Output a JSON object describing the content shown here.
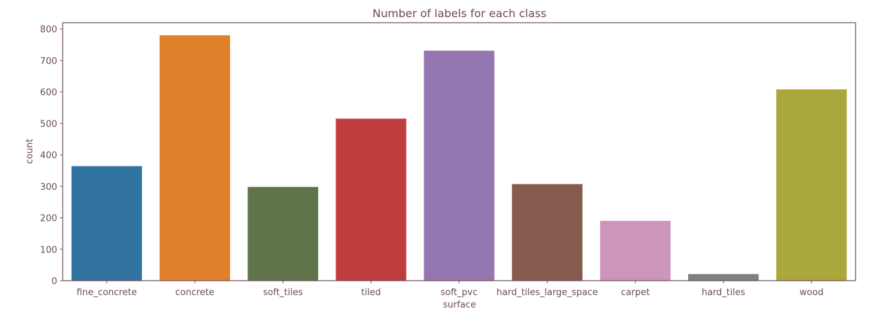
{
  "chart_data": {
    "type": "bar",
    "title": "Number of labels for each class",
    "xlabel": "surface",
    "ylabel": "count",
    "categories": [
      "fine_concrete",
      "concrete",
      "soft_tiles",
      "tiled",
      "soft_pvc",
      "hard_tiles_large_space",
      "carpet",
      "hard_tiles",
      "wood"
    ],
    "values": [
      364,
      780,
      298,
      515,
      731,
      307,
      190,
      21,
      608
    ],
    "colors": [
      "#3274a1",
      "#e1812c",
      "#5f7449",
      "#c03d3e",
      "#9476b0",
      "#845b4d",
      "#cc95b9",
      "#7f7f7f",
      "#a9a83b"
    ],
    "ylim": [
      0,
      820
    ],
    "yticks": [
      0,
      100,
      200,
      300,
      400,
      500,
      600,
      700,
      800
    ],
    "grid": false,
    "legend": false
  }
}
